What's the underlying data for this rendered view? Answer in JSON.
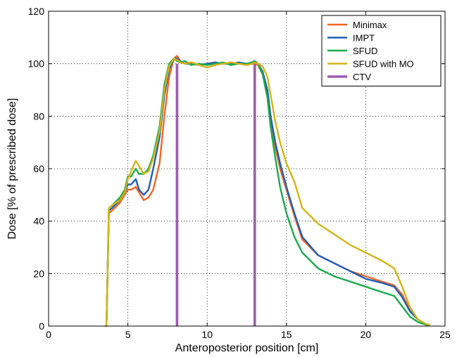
{
  "chart_data": {
    "type": "line",
    "xlabel": "Anteroposterior position [cm]",
    "ylabel": "Dose [% of prescribed dose]",
    "xlim": [
      0,
      25
    ],
    "ylim": [
      0,
      120
    ],
    "xticks": [
      0,
      5,
      10,
      15,
      20,
      25
    ],
    "yticks": [
      0,
      20,
      40,
      60,
      80,
      100,
      120
    ],
    "grid": "dotted",
    "legend_position": "top-right",
    "series": [
      {
        "name": "Minimax",
        "color": "#f26522",
        "x": [
          3.6,
          3.65,
          3.8,
          4.0,
          4.5,
          4.8,
          5.0,
          5.2,
          5.5,
          5.7,
          6.0,
          6.3,
          6.6,
          7.0,
          7.3,
          7.6,
          7.9,
          8.1,
          8.3,
          8.6,
          9.0,
          9.5,
          10.0,
          10.5,
          11.0,
          11.5,
          12.0,
          12.5,
          12.8,
          13.0,
          13.2,
          13.5,
          13.8,
          14.0,
          14.3,
          14.6,
          15.0,
          15.5,
          16.0,
          17.0,
          18.0,
          19.0,
          20.0,
          21.0,
          21.8,
          22.3,
          22.8,
          23.3,
          23.8,
          24.0
        ],
        "y": [
          0,
          0,
          43,
          44,
          47,
          50,
          52,
          52,
          53,
          51,
          48,
          49,
          52,
          62,
          80,
          95,
          102,
          103,
          101,
          100,
          100.5,
          99.5,
          100,
          100.5,
          100,
          100.5,
          100,
          99.5,
          100,
          100,
          99.5,
          96,
          88,
          78,
          68,
          60,
          52,
          42,
          33,
          27,
          24,
          21,
          19,
          17,
          15.5,
          12,
          6,
          2.5,
          0.7,
          0.5
        ]
      },
      {
        "name": "IMPT",
        "color": "#1f5fb4",
        "x": [
          3.6,
          3.65,
          3.8,
          4.0,
          4.5,
          4.8,
          5.0,
          5.2,
          5.5,
          5.7,
          6.0,
          6.3,
          6.6,
          7.0,
          7.3,
          7.6,
          7.9,
          8.1,
          8.3,
          8.6,
          9.0,
          9.5,
          10.0,
          10.5,
          11.0,
          11.5,
          12.0,
          12.5,
          12.8,
          13.0,
          13.2,
          13.5,
          13.8,
          14.0,
          14.3,
          14.6,
          15.0,
          15.5,
          16.0,
          17.0,
          18.0,
          19.0,
          20.0,
          21.0,
          21.8,
          22.3,
          22.8,
          23.3,
          23.8,
          24.0
        ],
        "y": [
          0,
          0,
          44,
          45,
          48,
          51,
          54,
          54,
          56,
          52,
          50,
          52,
          60,
          72,
          88,
          98,
          102,
          102,
          101,
          100,
          100,
          99.5,
          100,
          100.5,
          100,
          100,
          100.5,
          100,
          100.5,
          101,
          100,
          97,
          90,
          80,
          70,
          62,
          53,
          43,
          34,
          27,
          24,
          21,
          18,
          16.5,
          15,
          11,
          5.5,
          2.5,
          0.7,
          0.5
        ]
      },
      {
        "name": "SFUD",
        "color": "#1aaa4a",
        "x": [
          3.6,
          3.65,
          3.8,
          4.0,
          4.5,
          4.8,
          5.0,
          5.2,
          5.5,
          5.7,
          6.0,
          6.3,
          6.6,
          7.0,
          7.3,
          7.6,
          7.9,
          8.1,
          8.3,
          8.6,
          9.0,
          9.5,
          10.0,
          10.5,
          11.0,
          11.5,
          12.0,
          12.5,
          12.8,
          13.0,
          13.2,
          13.5,
          13.8,
          14.0,
          14.3,
          14.6,
          15.0,
          15.5,
          16.0,
          17.0,
          18.0,
          19.0,
          20.0,
          21.0,
          21.8,
          22.3,
          22.8,
          23.3,
          23.8,
          24.0
        ],
        "y": [
          0,
          0,
          45,
          46,
          49,
          52,
          57,
          57,
          60,
          58,
          58,
          60,
          65,
          76,
          92,
          100,
          102,
          101,
          100.5,
          101,
          99.5,
          100,
          99.5,
          100,
          100.5,
          99.5,
          100,
          100,
          100.5,
          101,
          100,
          96,
          87,
          76,
          64,
          53,
          43,
          34,
          28,
          22,
          19,
          17,
          15,
          13,
          11.5,
          7.5,
          3.5,
          1.5,
          0.5,
          0.3
        ]
      },
      {
        "name": "SFUD with MO",
        "color": "#d4b416",
        "x": [
          3.6,
          3.65,
          3.8,
          4.0,
          4.5,
          4.8,
          5.0,
          5.2,
          5.5,
          5.7,
          6.0,
          6.3,
          6.6,
          7.0,
          7.3,
          7.6,
          7.9,
          8.1,
          8.3,
          8.6,
          9.0,
          9.5,
          10.0,
          10.5,
          11.0,
          11.5,
          12.0,
          12.5,
          12.8,
          13.0,
          13.2,
          13.5,
          13.8,
          14.0,
          14.3,
          14.6,
          15.0,
          15.5,
          16.0,
          17.0,
          18.0,
          19.0,
          20.0,
          21.0,
          21.8,
          22.3,
          22.8,
          23.3,
          23.8,
          24.0
        ],
        "y": [
          0,
          0,
          45,
          46,
          48,
          51,
          56,
          59,
          63,
          61,
          58,
          59,
          64,
          74,
          90,
          99,
          102,
          101.5,
          100.5,
          100,
          100.5,
          99.5,
          98.5,
          99.5,
          100,
          100.5,
          100,
          99.5,
          100,
          100.5,
          100,
          99,
          95,
          88,
          78,
          70,
          62,
          55,
          45,
          39,
          35,
          31,
          28,
          25,
          22,
          15,
          7,
          2.5,
          0.8,
          0.5
        ]
      },
      {
        "name": "CTV",
        "color": "#a05bb0",
        "x": [
          8.1,
          8.1,
          8.1,
          13.0,
          13.0,
          13.0
        ],
        "y": [
          0,
          100,
          100,
          100,
          100,
          0
        ],
        "segments": [
          [
            [
              8.1,
              0
            ],
            [
              8.1,
              100
            ]
          ],
          [
            [
              13.0,
              0
            ],
            [
              13.0,
              100
            ]
          ]
        ]
      }
    ]
  }
}
